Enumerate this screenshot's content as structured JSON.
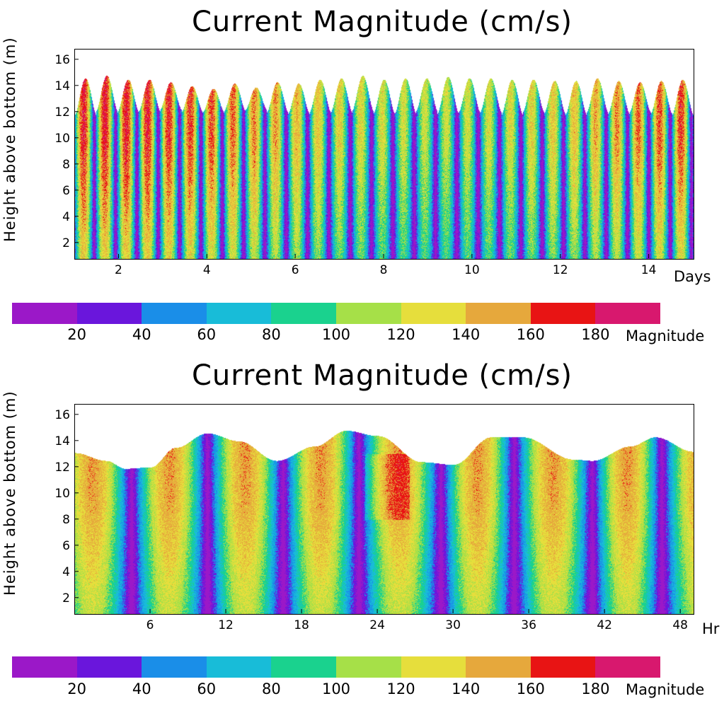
{
  "chart_data": [
    {
      "type": "heatmap",
      "title": "Current Magnitude (cm/s)",
      "xlabel": "Days",
      "ylabel": "Height above bottom (m)",
      "xlim": [
        1,
        15
      ],
      "ylim": [
        0.8,
        16.8
      ],
      "xticks": [
        2,
        4,
        6,
        8,
        10,
        12,
        14
      ],
      "yticks": [
        2,
        4,
        6,
        8,
        10,
        12,
        14,
        16
      ],
      "grid": false,
      "surface_peaks": [
        14.6,
        14.8,
        14.5,
        14.5,
        14.3,
        14.0,
        13.8,
        14.2,
        13.9,
        14.3,
        14.2,
        14.5,
        14.6,
        14.8,
        14.5,
        14.6,
        14.6,
        14.7,
        14.6,
        14.6,
        14.5,
        14.5,
        14.4,
        14.4,
        14.6,
        14.4,
        14.3,
        14.4,
        14.5
      ],
      "surface_troughs": [
        11.8,
        12.1,
        12.0,
        12.1,
        12.2,
        12.0,
        12.0,
        12.1,
        12.2,
        12.0,
        11.9,
        12.0,
        12.0,
        12.1,
        11.9,
        11.9,
        12.1,
        11.9,
        12.0,
        12.0,
        11.8,
        12.0,
        11.9,
        11.8,
        12.0,
        11.9,
        12.0,
        11.9,
        11.8
      ]
    },
    {
      "type": "heatmap",
      "title": "Current Magnitude (cm/s)",
      "xlabel": "Hr",
      "ylabel": "Height above bottom (m)",
      "xlim": [
        0,
        49
      ],
      "ylim": [
        0.8,
        16.8
      ],
      "xticks": [
        6,
        12,
        18,
        24,
        30,
        36,
        42,
        48
      ],
      "yticks": [
        2,
        4,
        6,
        8,
        10,
        12,
        14,
        16
      ],
      "grid": false,
      "surface": [
        {
          "hr": 0,
          "h": 13.1
        },
        {
          "hr": 2.5,
          "h": 12.5
        },
        {
          "hr": 4,
          "h": 11.9
        },
        {
          "hr": 6,
          "h": 12.0
        },
        {
          "hr": 8,
          "h": 13.5
        },
        {
          "hr": 10.5,
          "h": 14.6
        },
        {
          "hr": 13,
          "h": 14.0
        },
        {
          "hr": 16,
          "h": 12.5
        },
        {
          "hr": 19,
          "h": 13.6
        },
        {
          "hr": 21.5,
          "h": 14.8
        },
        {
          "hr": 24,
          "h": 14.4
        },
        {
          "hr": 27.5,
          "h": 12.4
        },
        {
          "hr": 30,
          "h": 12.2
        },
        {
          "hr": 33,
          "h": 14.3
        },
        {
          "hr": 35.5,
          "h": 14.3
        },
        {
          "hr": 39.5,
          "h": 12.6
        },
        {
          "hr": 41,
          "h": 12.5
        },
        {
          "hr": 44,
          "h": 13.6
        },
        {
          "hr": 46,
          "h": 14.3
        },
        {
          "hr": 49,
          "h": 13.2
        }
      ],
      "slack_minima_hr": [
        4.5,
        10.5,
        16.5,
        22.5,
        29.0,
        34.8,
        41.0,
        46.5
      ]
    }
  ],
  "colorbar": {
    "label": "Magnitude",
    "tick_labels": [
      "20",
      "40",
      "60",
      "80",
      "100",
      "120",
      "140",
      "160",
      "180"
    ],
    "colors": [
      "#9b18c8",
      "#6a16dc",
      "#1a8ee8",
      "#18bcd8",
      "#1ad28e",
      "#a6e048",
      "#e6de3c",
      "#e6a83c",
      "#e81414",
      "#d8186e"
    ]
  }
}
